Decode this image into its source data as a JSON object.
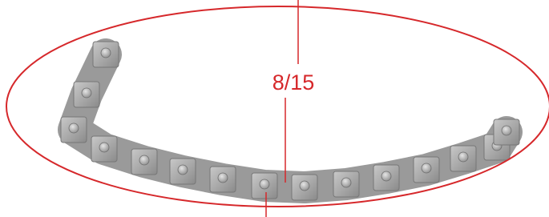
{
  "annotation": {
    "label": "8/15"
  }
}
